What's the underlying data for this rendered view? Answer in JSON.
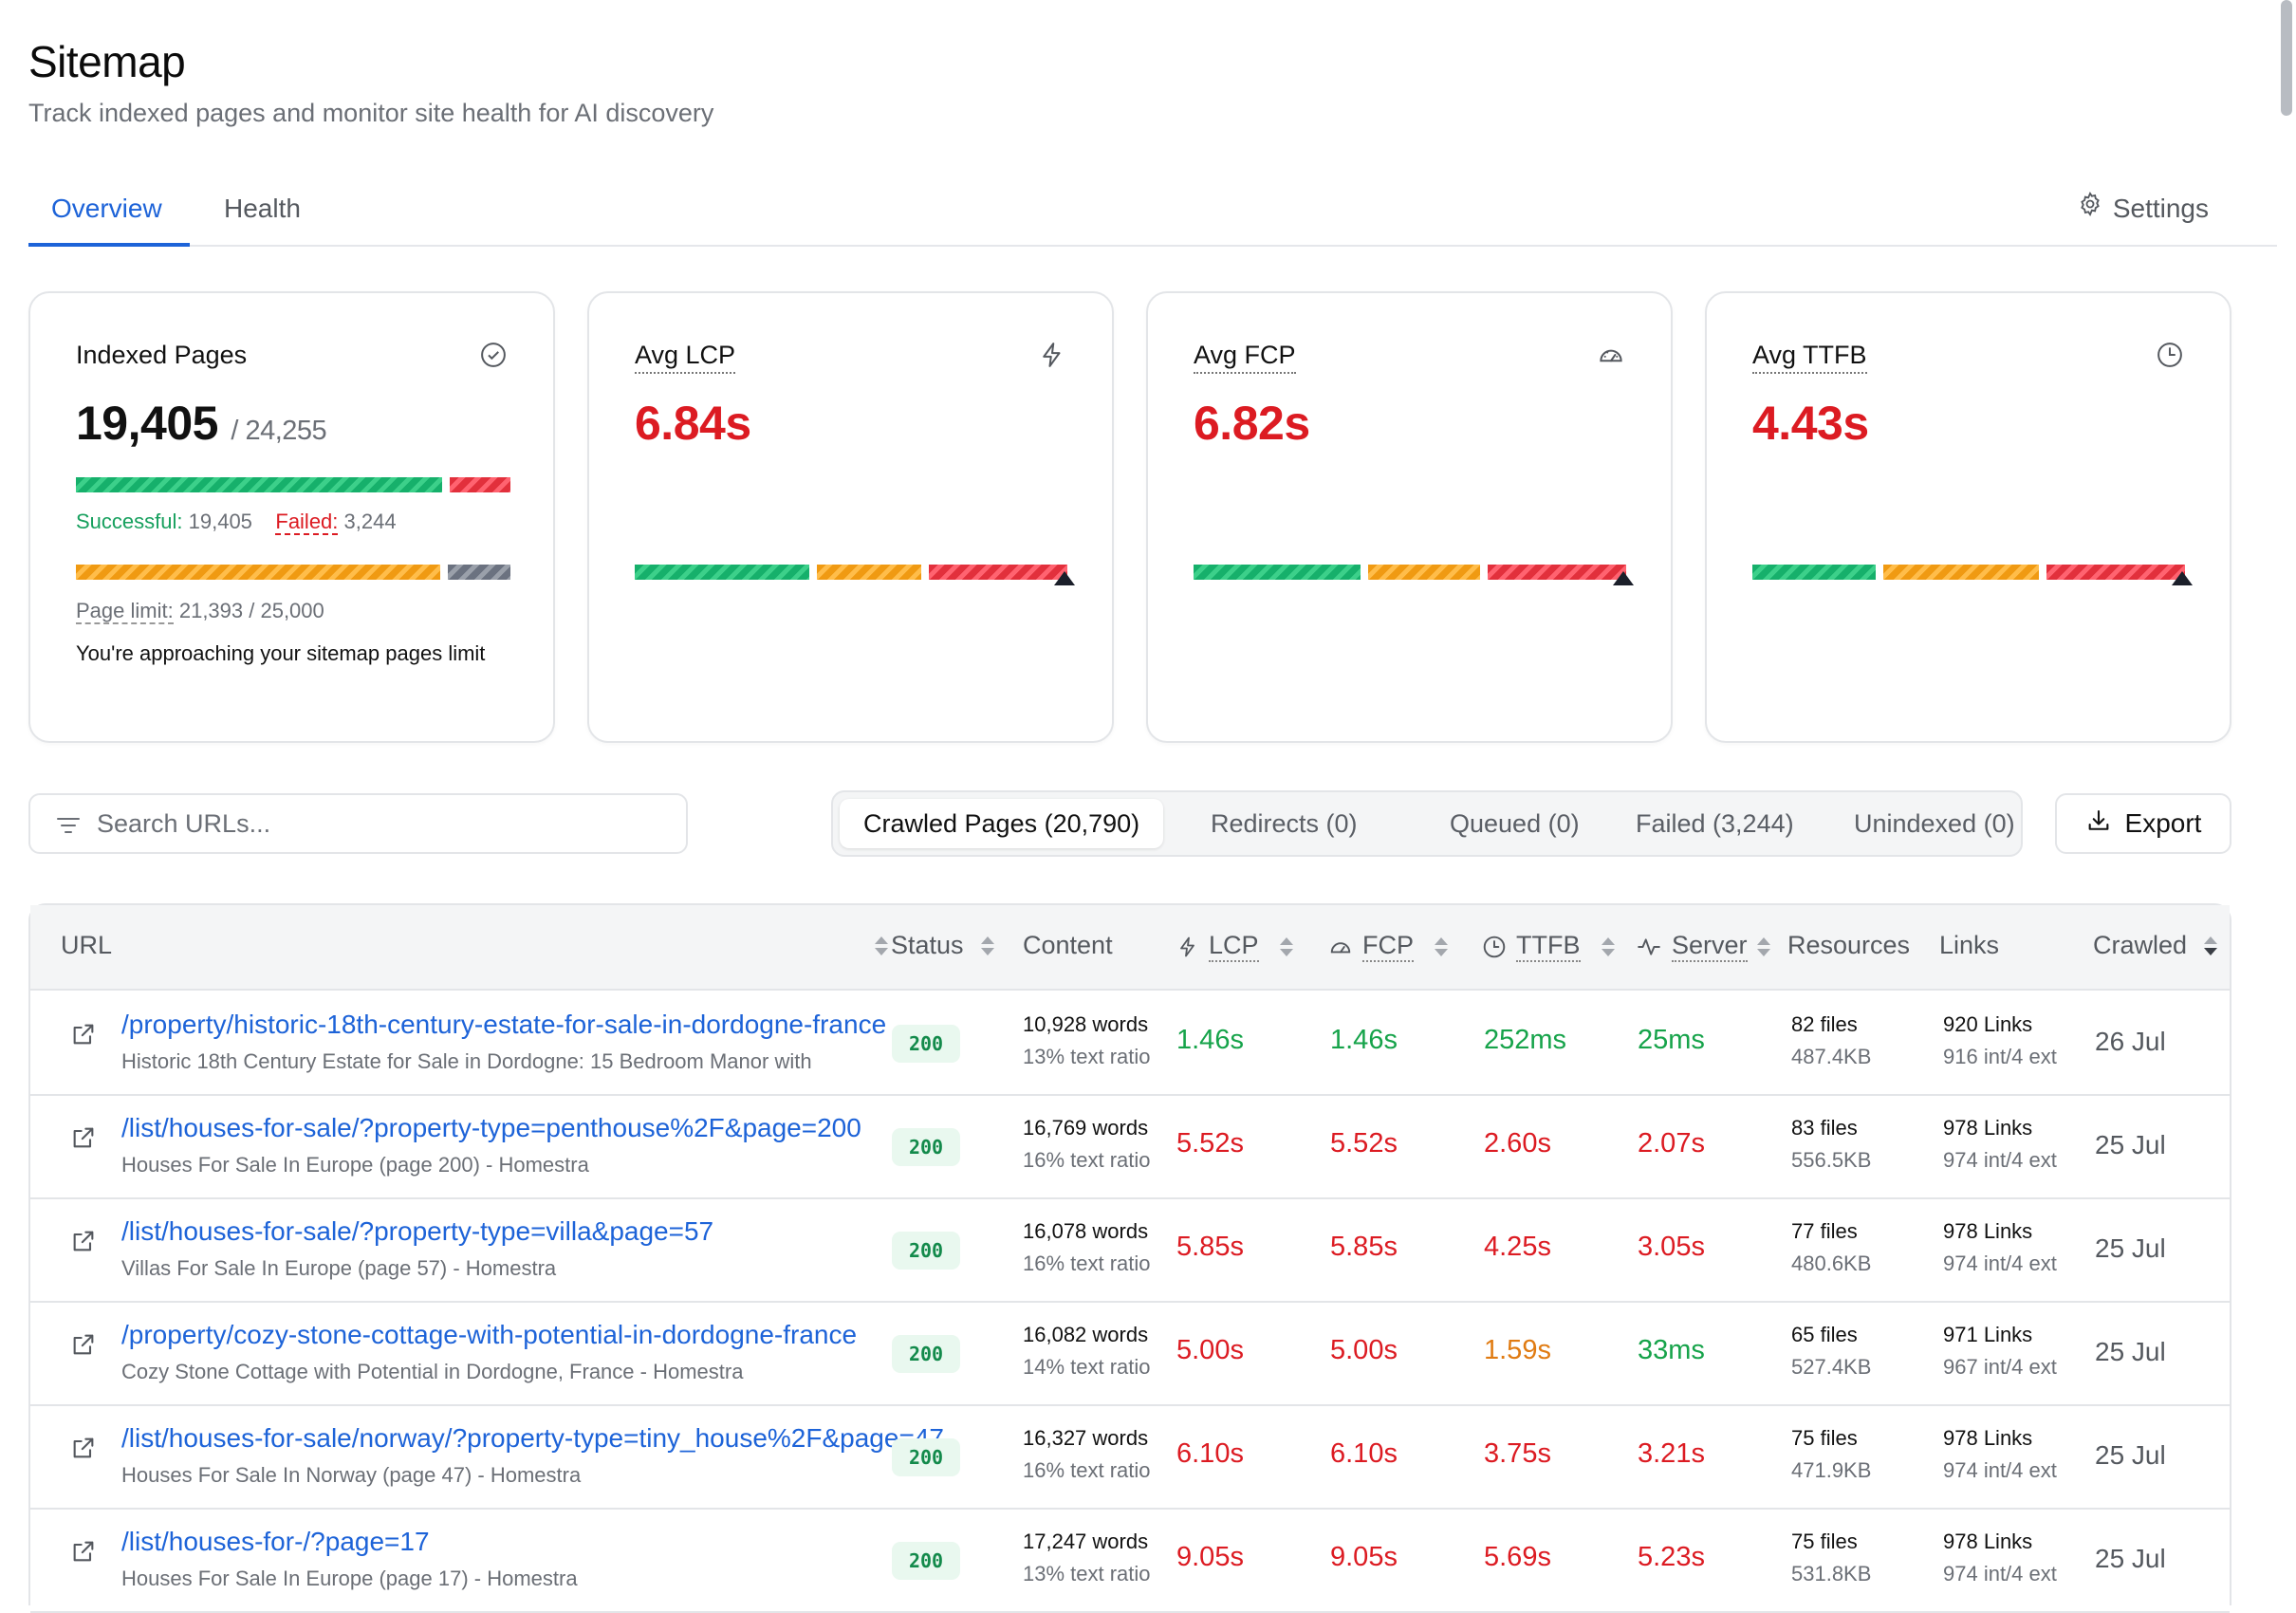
{
  "header": {
    "title": "Sitemap",
    "subtitle": "Track indexed pages and monitor site health for AI discovery"
  },
  "tabs": [
    {
      "label": "Overview",
      "active": true
    },
    {
      "label": "Health",
      "active": false
    }
  ],
  "settings_label": "Settings",
  "cards": {
    "indexed": {
      "title": "Indexed Pages",
      "value": "19,405",
      "total": "/ 24,255",
      "successful_label": "Successful:",
      "successful_value": "19,405",
      "failed_label": "Failed:",
      "failed_value": "3,244",
      "limit_label": "Page limit:",
      "limit_value": "21,393 / 25,000",
      "warning": "You're approaching your sitemap pages limit",
      "icon": "check-circle-icon"
    },
    "lcp": {
      "title": "Avg LCP",
      "value": "6.84s",
      "icon": "lightning-icon"
    },
    "fcp": {
      "title": "Avg FCP",
      "value": "6.82s",
      "icon": "gauge-icon"
    },
    "ttfb": {
      "title": "Avg TTFB",
      "value": "4.43s",
      "icon": "clock-icon"
    }
  },
  "search": {
    "placeholder": "Search URLs..."
  },
  "filters": [
    {
      "label": "Crawled Pages (20,790)",
      "active": true
    },
    {
      "label": "Redirects (0)",
      "active": false
    },
    {
      "label": "Queued (0)",
      "active": false
    },
    {
      "label": "Failed (3,244)",
      "active": false
    },
    {
      "label": "Unindexed (0)",
      "active": false
    }
  ],
  "export_label": "Export",
  "table": {
    "columns": {
      "url": "URL",
      "status": "Status",
      "content": "Content",
      "lcp": "LCP",
      "fcp": "FCP",
      "ttfb": "TTFB",
      "server": "Server",
      "resources": "Resources",
      "links": "Links",
      "crawled": "Crawled"
    },
    "rows": [
      {
        "url": "/property/historic-18th-century-estate-for-sale-in-dordogne-france",
        "title": "Historic 18th Century Estate for Sale in Dordogne: 15 Bedroom Manor with",
        "status": "200",
        "words": "10,928 words",
        "ratio": "13% text ratio",
        "lcp": "1.46s",
        "fcp": "1.46s",
        "ttfb": "252ms",
        "server": "25ms",
        "files": "82 files",
        "size": "487.4KB",
        "links": "920 Links",
        "links_detail": "916 int/4 ext",
        "crawled": "26 Jul"
      },
      {
        "url": "/list/houses-for-sale/?property-type=penthouse%2F&page=200",
        "title": "Houses For Sale In Europe (page 200) - Homestra",
        "status": "200",
        "words": "16,769 words",
        "ratio": "16% text ratio",
        "lcp": "5.52s",
        "fcp": "5.52s",
        "ttfb": "2.60s",
        "server": "2.07s",
        "files": "83 files",
        "size": "556.5KB",
        "links": "978 Links",
        "links_detail": "974 int/4 ext",
        "crawled": "25 Jul"
      },
      {
        "url": "/list/houses-for-sale/?property-type=villa&page=57",
        "title": "Villas For Sale In Europe (page 57) - Homestra",
        "status": "200",
        "words": "16,078 words",
        "ratio": "16% text ratio",
        "lcp": "5.85s",
        "fcp": "5.85s",
        "ttfb": "4.25s",
        "server": "3.05s",
        "files": "77 files",
        "size": "480.6KB",
        "links": "978 Links",
        "links_detail": "974 int/4 ext",
        "crawled": "25 Jul"
      },
      {
        "url": "/property/cozy-stone-cottage-with-potential-in-dordogne-france",
        "title": "Cozy Stone Cottage with Potential in Dordogne, France - Homestra",
        "status": "200",
        "words": "16,082 words",
        "ratio": "14% text ratio",
        "lcp": "5.00s",
        "fcp": "5.00s",
        "ttfb": "1.59s",
        "server": "33ms",
        "files": "65 files",
        "size": "527.4KB",
        "links": "971 Links",
        "links_detail": "967 int/4 ext",
        "crawled": "25 Jul"
      },
      {
        "url": "/list/houses-for-sale/norway/?property-type=tiny_house%2F&page=47",
        "title": "Houses For Sale In Norway (page 47) - Homestra",
        "status": "200",
        "words": "16,327 words",
        "ratio": "16% text ratio",
        "lcp": "6.10s",
        "fcp": "6.10s",
        "ttfb": "3.75s",
        "server": "3.21s",
        "files": "75 files",
        "size": "471.9KB",
        "links": "978 Links",
        "links_detail": "974 int/4 ext",
        "crawled": "25 Jul"
      },
      {
        "url": "/list/houses-for-/?page=17",
        "title": "Houses For Sale In Europe (page 17) - Homestra",
        "status": "200",
        "words": "17,247 words",
        "ratio": "13% text ratio",
        "lcp": "9.05s",
        "fcp": "9.05s",
        "ttfb": "5.69s",
        "server": "5.23s",
        "files": "75 files",
        "size": "531.8KB",
        "links": "978 Links",
        "links_detail": "974 int/4 ext",
        "crawled": "25 Jul"
      }
    ]
  },
  "colors": {
    "accent": "#1d63d8",
    "good": "#16a34a",
    "poor": "#dc1b22",
    "needs_improvement": "#e07b12"
  }
}
